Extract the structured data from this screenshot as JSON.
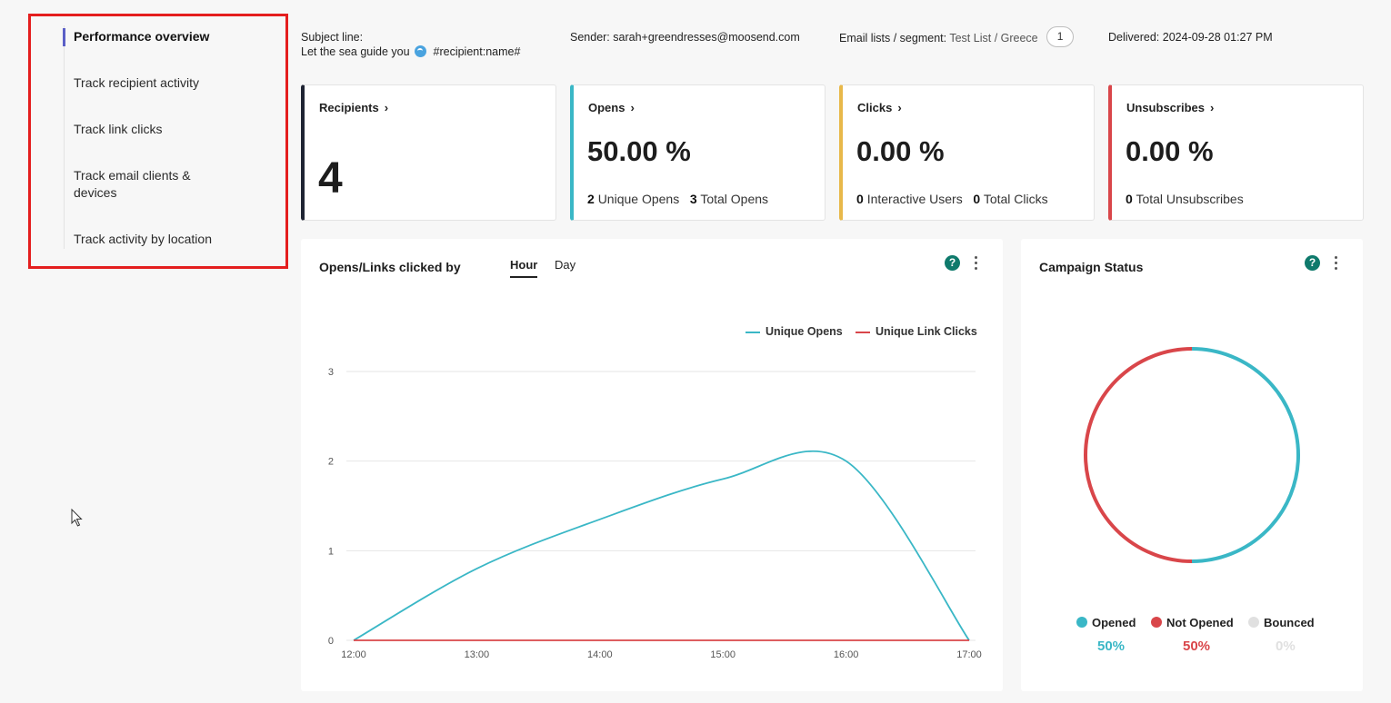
{
  "nav": {
    "items": [
      {
        "label": "Performance overview",
        "active": true
      },
      {
        "label": "Track recipient activity"
      },
      {
        "label": "Track link clicks"
      },
      {
        "label": "Track email clients & devices"
      },
      {
        "label": "Track activity by location"
      }
    ]
  },
  "header": {
    "subject_label": "Subject line:",
    "subject_text": "Let the sea guide you",
    "subject_tag": "#recipient:name#",
    "sender_label": "Sender:",
    "sender_value": "sarah+greendresses@moosend.com",
    "lists_label": "Email lists / segment:",
    "lists_value": "Test List",
    "segment_value": "/ Greece",
    "segment_count": "1",
    "delivered_label": "Delivered:",
    "delivered_value": "2024-09-28 01:27 PM"
  },
  "cards": {
    "recipients": {
      "title": "Recipients",
      "value": "4",
      "color": "#1f2433"
    },
    "opens": {
      "title": "Opens",
      "value": "50.00 %",
      "n1": "2",
      "l1": "Unique Opens",
      "n2": "3",
      "l2": "Total Opens",
      "color": "#3ab7c6"
    },
    "clicks": {
      "title": "Clicks",
      "value": "0.00 %",
      "n1": "0",
      "l1": "Interactive Users",
      "n2": "0",
      "l2": "Total Clicks",
      "color": "#e8b84a"
    },
    "unsubscribes": {
      "title": "Unsubscribes",
      "value": "0.00 %",
      "n1": "0",
      "l1": "Total Unsubscribes",
      "color": "#d9464a"
    }
  },
  "opens_chart": {
    "title": "Opens/Links clicked by",
    "tabs": [
      "Hour",
      "Day"
    ],
    "active_tab": "Hour",
    "legend": [
      "Unique Opens",
      "Unique Link Clicks"
    ]
  },
  "campaign_status": {
    "title": "Campaign Status",
    "legend": [
      {
        "label": "Opened",
        "pct": "50%",
        "color": "#3ab7c6"
      },
      {
        "label": "Not Opened",
        "pct": "50%",
        "color": "#d9464a"
      },
      {
        "label": "Bounced",
        "pct": "0%",
        "color": "#e0e0e0"
      }
    ]
  },
  "chart_data": [
    {
      "type": "line",
      "title": "Opens/Links clicked by",
      "categories": [
        "12:00",
        "13:00",
        "14:00",
        "15:00",
        "16:00",
        "17:00"
      ],
      "series": [
        {
          "name": "Unique Opens",
          "values": [
            0,
            0.8,
            1.35,
            1.8,
            2,
            0
          ],
          "color": "#3ab7c6"
        },
        {
          "name": "Unique Link Clicks",
          "values": [
            0,
            0,
            0,
            0,
            0,
            0
          ],
          "color": "#d9464a"
        }
      ],
      "yticks": [
        0,
        1,
        2,
        3
      ],
      "ylim": [
        0,
        3
      ],
      "legend": "top-right"
    },
    {
      "type": "pie",
      "title": "Campaign Status",
      "categories": [
        "Opened",
        "Not Opened",
        "Bounced"
      ],
      "values": [
        50,
        50,
        0
      ]
    }
  ]
}
